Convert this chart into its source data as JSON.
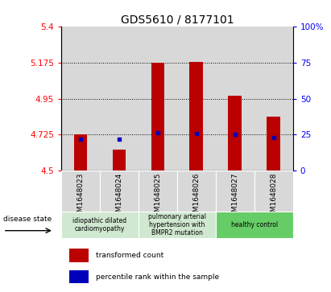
{
  "title": "GDS5610 / 8177101",
  "samples": [
    "GSM1648023",
    "GSM1648024",
    "GSM1648025",
    "GSM1648026",
    "GSM1648027",
    "GSM1648028"
  ],
  "red_values": [
    4.725,
    4.63,
    5.175,
    5.18,
    4.97,
    4.835
  ],
  "blue_values": [
    4.695,
    4.695,
    4.735,
    4.73,
    4.725,
    4.705
  ],
  "ylim_left": [
    4.5,
    5.4
  ],
  "yticks_left": [
    4.5,
    4.725,
    4.95,
    5.175,
    5.4
  ],
  "yticks_left_labels": [
    "4.5",
    "4.725",
    "4.95",
    "5.175",
    "5.4"
  ],
  "yticks_right": [
    0,
    25,
    50,
    75,
    100
  ],
  "yticks_right_labels": [
    "0",
    "25",
    "50",
    "75",
    "100%"
  ],
  "hlines": [
    4.725,
    4.95,
    5.175
  ],
  "bar_bottom": 4.5,
  "disease_groups": [
    {
      "label": "idiopathic dilated\ncardiomyopathy",
      "start": 0,
      "end": 2,
      "color": "#d0e8d0"
    },
    {
      "label": "pulmonary arterial\nhypertension with\nBMPR2 mutation",
      "start": 2,
      "end": 4,
      "color": "#d0e8d0"
    },
    {
      "label": "healthy control",
      "start": 4,
      "end": 6,
      "color": "#66cc66"
    }
  ],
  "legend_red_label": "transformed count",
  "legend_blue_label": "percentile rank within the sample",
  "disease_state_label": "disease state",
  "bar_color": "#bb0000",
  "dot_color": "#0000bb",
  "col_bg": "#d8d8d8",
  "plot_bg": "#ffffff",
  "title_fontsize": 10,
  "tick_fontsize": 7.5,
  "label_fontsize": 6.5,
  "bar_width": 0.35
}
